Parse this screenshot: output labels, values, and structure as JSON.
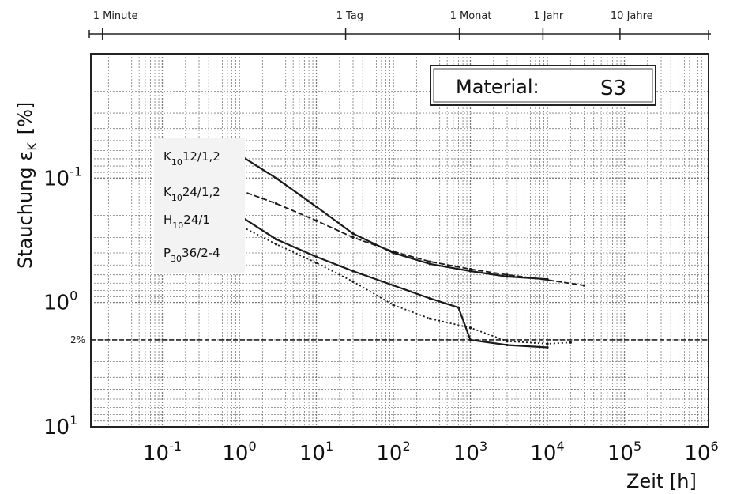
{
  "chart_data": {
    "type": "line",
    "title": "",
    "xlabel": "Zeit [h]",
    "ylabel_main": "Stauchung ε",
    "ylabel_sub": "K",
    "ylabel_unit": "[%]",
    "xscale": "log",
    "yscale": "log (inverted)",
    "xlim": [
      0.01,
      1000000
    ],
    "ylim": [
      0.01,
      10
    ],
    "grid": true,
    "legend_position": "top-left inside plot",
    "x_tick_labels": [
      {
        "base": "10",
        "exp": "-1",
        "value": 0.1
      },
      {
        "base": "10",
        "exp": "0",
        "value": 1
      },
      {
        "base": "10",
        "exp": "1",
        "value": 10
      },
      {
        "base": "10",
        "exp": "2",
        "value": 100
      },
      {
        "base": "10",
        "exp": "3",
        "value": 1000
      },
      {
        "base": "10",
        "exp": "4",
        "value": 10000
      },
      {
        "base": "10",
        "exp": "5",
        "value": 100000
      },
      {
        "base": "10",
        "exp": "6",
        "value": 1000000
      }
    ],
    "y_tick_labels": [
      {
        "base": "10",
        "exp": "-1",
        "value": 0.1
      },
      {
        "base": "10",
        "exp": "0",
        "value": 1
      },
      {
        "base": "10",
        "exp": "1",
        "value": 10
      }
    ],
    "reference_line": {
      "label": "2%",
      "value": 2
    },
    "time_axis": {
      "marks": [
        {
          "label": "1 Minute",
          "hours": 0.0167
        },
        {
          "label": "1 Tag",
          "hours": 24
        },
        {
          "label": "1 Monat",
          "hours": 720
        },
        {
          "label": "1 Jahr",
          "hours": 8760
        },
        {
          "label": "10 Jahre",
          "hours": 87600
        }
      ]
    },
    "annotation": {
      "label": "Material:",
      "value": "S3"
    },
    "series": [
      {
        "name": "K10 12/1,2",
        "name_parts": [
          "K",
          "10",
          "12/1,2"
        ],
        "style": "solid",
        "points": [
          [
            1,
            0.065
          ],
          [
            3,
            0.1
          ],
          [
            10,
            0.17
          ],
          [
            30,
            0.28
          ],
          [
            100,
            0.4
          ],
          [
            300,
            0.49
          ],
          [
            1000,
            0.56
          ],
          [
            3000,
            0.62
          ],
          [
            10000,
            0.65
          ]
        ]
      },
      {
        "name": "K10 24/1,2",
        "name_parts": [
          "K",
          "10",
          "24/1,2"
        ],
        "style": "dashed",
        "points": [
          [
            1,
            0.125
          ],
          [
            3,
            0.16
          ],
          [
            10,
            0.22
          ],
          [
            30,
            0.3
          ],
          [
            100,
            0.39
          ],
          [
            300,
            0.47
          ],
          [
            1000,
            0.54
          ],
          [
            3000,
            0.6
          ],
          [
            10000,
            0.66
          ],
          [
            30000,
            0.73
          ]
        ]
      },
      {
        "name": "H10 24/1",
        "name_parts": [
          "H",
          "10",
          "24/1"
        ],
        "style": "solid",
        "points": [
          [
            1,
            0.2
          ],
          [
            3,
            0.31
          ],
          [
            10,
            0.43
          ],
          [
            30,
            0.56
          ],
          [
            100,
            0.73
          ],
          [
            300,
            0.93
          ],
          [
            700,
            1.1
          ],
          [
            1000,
            2.0
          ],
          [
            3000,
            2.2
          ],
          [
            10000,
            2.3
          ]
        ]
      },
      {
        "name": "P30 36/2-4",
        "name_parts": [
          "P",
          "30",
          "36/2-4"
        ],
        "style": "dotted",
        "points": [
          [
            1,
            0.24
          ],
          [
            3,
            0.34
          ],
          [
            10,
            0.48
          ],
          [
            30,
            0.68
          ],
          [
            100,
            1.05
          ],
          [
            300,
            1.35
          ],
          [
            1000,
            1.6
          ],
          [
            3000,
            2.05
          ],
          [
            10000,
            2.15
          ],
          [
            20000,
            2.1
          ]
        ]
      }
    ]
  }
}
